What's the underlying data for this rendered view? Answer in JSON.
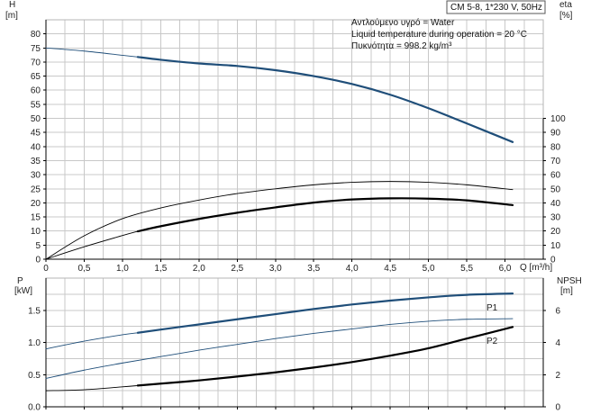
{
  "title": "CM 5-8, 1*230 V, 50Hz",
  "info_lines": [
    "Αντλούμενο υγρό = Water",
    "Liquid temperature during operation = 20 °C",
    "Πυκνότητα = 998.2 kg/m³"
  ],
  "chart_data": [
    {
      "type": "line",
      "panel": "top",
      "xlim": [
        0,
        6.5
      ],
      "x_ticks": [
        "0",
        "0,5",
        "1,0",
        "1,5",
        "2,0",
        "2,5",
        "3,0",
        "3,5",
        "4,0",
        "4,5",
        "5,0",
        "5,5",
        "6,0"
      ],
      "xlabel_unit": "Q [m³/h]",
      "y_left": {
        "label": "H",
        "unit": "[m]",
        "lim": [
          0,
          85
        ],
        "ticks": [
          "0",
          "5",
          "10",
          "15",
          "20",
          "25",
          "30",
          "35",
          "40",
          "45",
          "50",
          "55",
          "60",
          "65",
          "70",
          "75",
          "80"
        ]
      },
      "y_right": {
        "label": "eta",
        "unit": "[%]",
        "lim": [
          0,
          170
        ],
        "ticks": [
          "0",
          "10",
          "20",
          "30",
          "40",
          "50",
          "60",
          "70",
          "80",
          "90",
          "100"
        ]
      },
      "grid": true,
      "series": [
        {
          "axis": "left",
          "color": "#1f4e79",
          "style": "thin",
          "x": [
            0,
            0.5,
            1.0,
            1.2
          ],
          "y": [
            75,
            73.9,
            72.4,
            71.8
          ]
        },
        {
          "axis": "left",
          "color": "#1f4e79",
          "style": "thick",
          "x": [
            1.2,
            1.5,
            2.0,
            2.5,
            3.0,
            3.5,
            4.0,
            4.5,
            5.0,
            5.5,
            6.1
          ],
          "y": [
            71.8,
            70.8,
            69.5,
            68.6,
            67.1,
            65.0,
            62.2,
            58.4,
            53.6,
            48.2,
            41.6
          ]
        },
        {
          "axis": "right",
          "color": "#000000",
          "style": "thin",
          "x": [
            0,
            0.5,
            1.0,
            1.5,
            2.0,
            2.5,
            3.0,
            3.5,
            4.0,
            4.5,
            5.0,
            5.5,
            6.1
          ],
          "y": [
            0,
            16.6,
            28.8,
            36.4,
            42.0,
            46.6,
            50.0,
            52.8,
            54.6,
            55.2,
            54.6,
            52.8,
            49.4
          ]
        },
        {
          "axis": "right",
          "color": "#000000",
          "style": "thin",
          "x": [
            0,
            0.5,
            1.0,
            1.2
          ],
          "y": [
            0,
            8.8,
            16.8,
            19.8
          ]
        },
        {
          "axis": "right",
          "color": "#000000",
          "style": "thick",
          "x": [
            1.2,
            1.5,
            2.0,
            2.5,
            3.0,
            3.5,
            4.0,
            4.5,
            5.0,
            5.5,
            6.1
          ],
          "y": [
            19.8,
            23.4,
            28.6,
            33.0,
            36.8,
            40.2,
            42.4,
            43.2,
            43.0,
            41.8,
            38.4
          ]
        }
      ]
    },
    {
      "type": "line",
      "panel": "bottom",
      "xlim": [
        0,
        6.5
      ],
      "y_left": {
        "label": "P",
        "unit": "[kW]",
        "lim": [
          0,
          2.0
        ],
        "ticks": [
          "0.0",
          "0.5",
          "1.0",
          "1.5"
        ]
      },
      "y_right": {
        "label": "NPSH",
        "unit": "[m]",
        "lim": [
          0,
          8
        ],
        "ticks": [
          "0",
          "2",
          "4",
          "6"
        ]
      },
      "grid": true,
      "series": [
        {
          "name": "P1",
          "axis": "left",
          "color": "#1f4e79",
          "style": "thin",
          "x": [
            0,
            0.5,
            1.0,
            1.2
          ],
          "y": [
            0.9,
            1.02,
            1.12,
            1.15
          ]
        },
        {
          "name": "P1",
          "axis": "left",
          "color": "#1f4e79",
          "style": "thick",
          "x": [
            1.2,
            1.5,
            2.0,
            2.5,
            3.0,
            3.5,
            4.0,
            4.5,
            5.0,
            5.5,
            6.1
          ],
          "y": [
            1.15,
            1.2,
            1.28,
            1.36,
            1.44,
            1.52,
            1.59,
            1.65,
            1.7,
            1.74,
            1.76
          ]
        },
        {
          "name": "P2",
          "axis": "left",
          "color": "#1f4e79",
          "style": "thin",
          "x": [
            0,
            0.5,
            1.0,
            1.5,
            2.0,
            2.5,
            3.0,
            3.5,
            4.0,
            4.5,
            5.0,
            5.5,
            6.1
          ],
          "y": [
            0.44,
            0.57,
            0.68,
            0.78,
            0.88,
            0.97,
            1.06,
            1.14,
            1.21,
            1.28,
            1.33,
            1.36,
            1.37
          ]
        },
        {
          "axis": "right",
          "color": "#000000",
          "style": "thin",
          "x": [
            0,
            0.5,
            1.0,
            1.2
          ],
          "y": [
            1.0,
            1.06,
            1.24,
            1.32
          ]
        },
        {
          "axis": "right",
          "color": "#000000",
          "style": "thick",
          "x": [
            1.2,
            1.5,
            2.0,
            2.5,
            3.0,
            3.5,
            4.0,
            4.5,
            5.0,
            5.5,
            6.1
          ],
          "y": [
            1.32,
            1.44,
            1.64,
            1.88,
            2.14,
            2.44,
            2.78,
            3.18,
            3.64,
            4.24,
            4.96
          ]
        }
      ]
    }
  ]
}
